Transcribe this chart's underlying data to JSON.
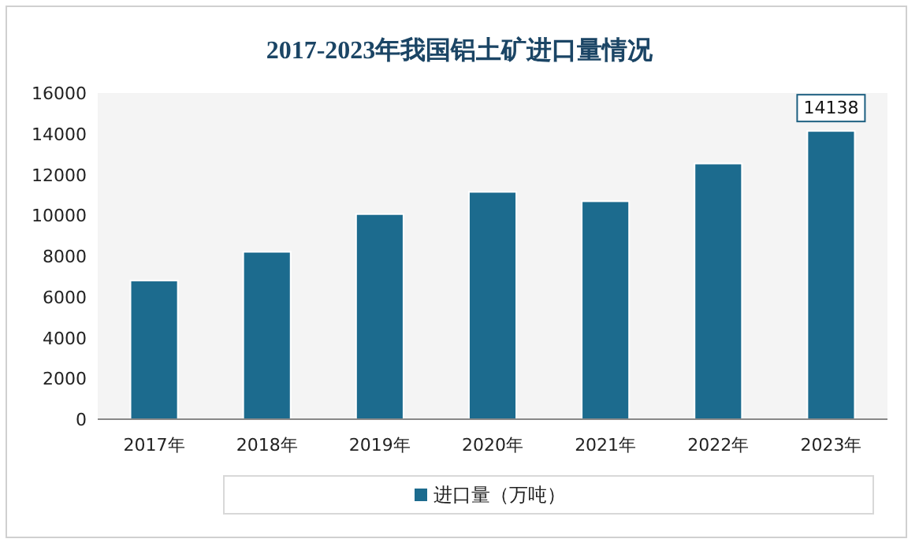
{
  "chart_data": {
    "type": "bar",
    "title": "2017-2023年我国铝土矿进口量情况",
    "categories": [
      "2017年",
      "2018年",
      "2019年",
      "2020年",
      "2021年",
      "2022年",
      "2023年"
    ],
    "series": [
      {
        "name": "进口量（万吨）",
        "color": "#1c6b8e",
        "values": [
          6800,
          8210,
          10060,
          11150,
          10690,
          12540,
          14138
        ],
        "value_labels": [
          null,
          null,
          null,
          null,
          null,
          null,
          "14138"
        ]
      }
    ],
    "ylim": [
      0,
      16000
    ],
    "yticks": [
      0,
      2000,
      4000,
      6000,
      8000,
      10000,
      12000,
      14000,
      16000
    ],
    "legend": "bottom"
  }
}
